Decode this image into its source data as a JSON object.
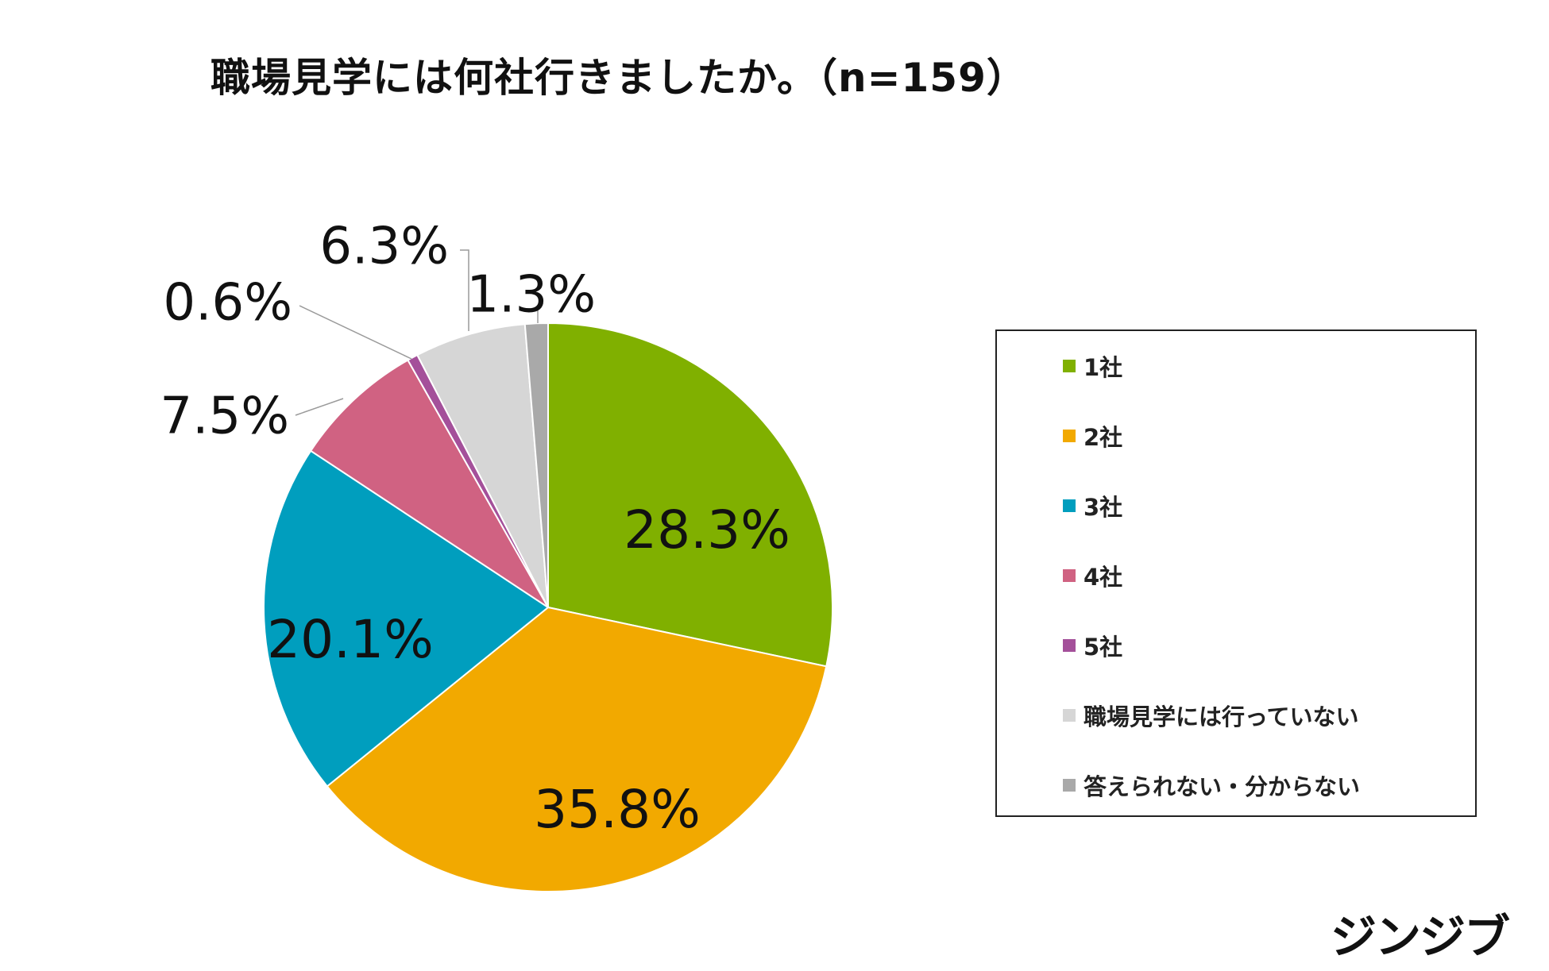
{
  "chart_data": {
    "type": "pie",
    "title": "職場見学には何社行きましたか。（n=159）",
    "categories": [
      "1社",
      "2社",
      "3社",
      "4社",
      "5社",
      "職場見学には行っていない",
      "答えられない・分からない"
    ],
    "values": [
      28.3,
      35.8,
      20.1,
      7.5,
      0.6,
      6.3,
      1.3
    ],
    "value_labels": [
      "28.3%",
      "35.8%",
      "20.1%",
      "7.5%",
      "0.6%",
      "6.3%",
      "1.3%"
    ],
    "colors": [
      "#80B000",
      "#F2A900",
      "#009EBE",
      "#D06282",
      "#A4509A",
      "#D6D6D6",
      "#A9A9A9"
    ],
    "start_angle": "12 o'clock",
    "direction": "clockwise",
    "legend_position": "right"
  },
  "brand": {
    "logo_text": "ジンジブ"
  }
}
